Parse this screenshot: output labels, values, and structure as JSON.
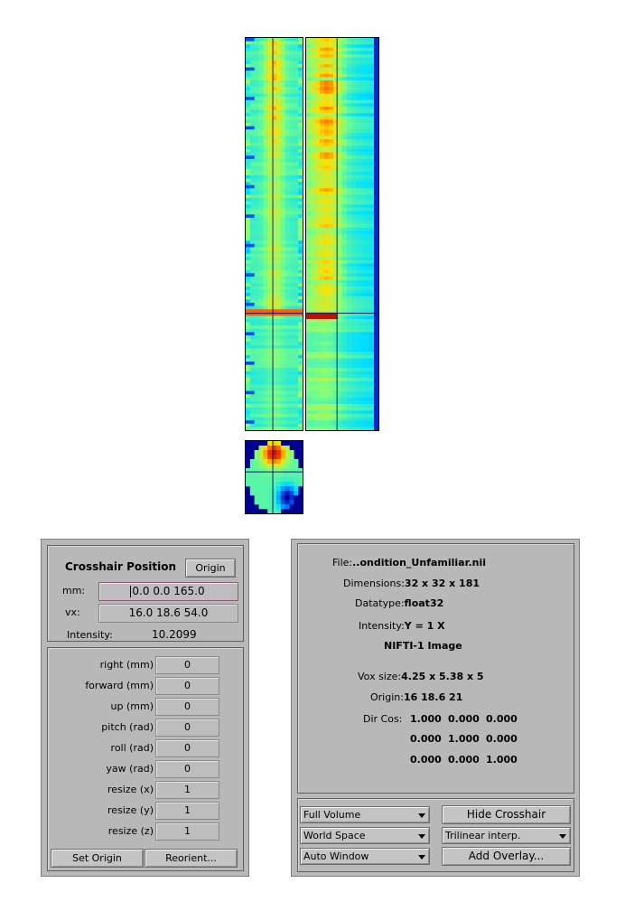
{
  "crosshair": {
    "title": "Crosshair Position",
    "origin_button": "Origin",
    "mm_label": "mm:",
    "mm_value": "0.0 0.0 165.0",
    "vx_label": "vx:",
    "vx_value": "16.0 18.6 54.0",
    "intensity_label": "Intensity:",
    "intensity_value": "10.2099"
  },
  "transform": {
    "rows": [
      {
        "label": "right  (mm)",
        "value": "0"
      },
      {
        "label": "forward  (mm)",
        "value": "0"
      },
      {
        "label": "up  (mm)",
        "value": "0"
      },
      {
        "label": "pitch  (rad)",
        "value": "0"
      },
      {
        "label": "roll  (rad)",
        "value": "0"
      },
      {
        "label": "yaw  (rad)",
        "value": "0"
      },
      {
        "label": "resize  (x)",
        "value": "1"
      },
      {
        "label": "resize  (y)",
        "value": "1"
      },
      {
        "label": "resize  (z)",
        "value": "1"
      }
    ],
    "set_origin_button": "Set Origin",
    "reorient_button": "Reorient..."
  },
  "info": {
    "file_label": "File:",
    "file_value": "..ondition_Unfamiliar.nii",
    "dimensions_label": "Dimensions:",
    "dimensions_value": "32 x 32 x 181",
    "datatype_label": "Datatype:",
    "datatype_value": "float32",
    "intensity_label": "Intensity:",
    "intensity_value": "Y = 1 X",
    "format": "NIFTI-1 Image",
    "vox_size_label": "Vox size:",
    "vox_size_value": "4.25 x 5.38 x 5",
    "origin_label": "Origin:",
    "origin_value": "16 18.6 21",
    "dircos_label": "Dir Cos:",
    "dircos": [
      [
        "1.000",
        "0.000",
        "0.000"
      ],
      [
        "0.000",
        "1.000",
        "0.000"
      ],
      [
        "0.000",
        "0.000",
        "1.000"
      ]
    ]
  },
  "controls": {
    "volume_select": "Full Volume",
    "space_select": "World Space",
    "window_select": "Auto Window",
    "interp_select": "Trilinear interp.",
    "hide_crosshair_button": "Hide Crosshair",
    "add_overlay_button": "Add Overlay..."
  },
  "colors": {
    "panel_bg": "#b8b8b8",
    "crosshair_line": "#1a1a6e",
    "colormap": [
      "#00008f",
      "#0058ff",
      "#00e0ff",
      "#7fff7f",
      "#ffe000",
      "#ff4000",
      "#a00000"
    ]
  }
}
